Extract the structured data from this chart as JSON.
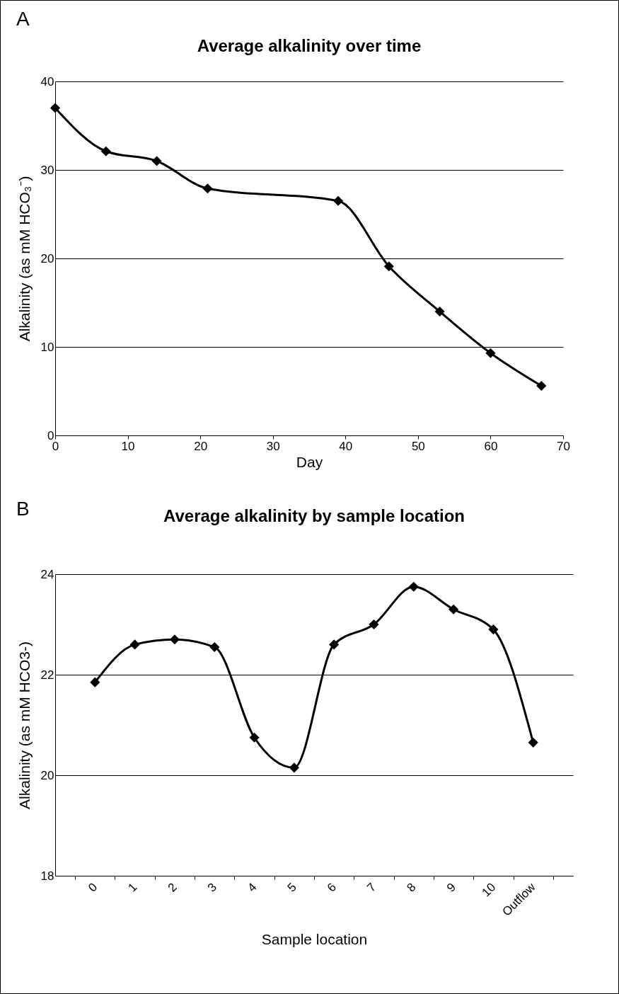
{
  "chart_data": [
    {
      "type": "line",
      "title": "Average alkalinity over time",
      "xlabel": "Day",
      "ylabel": "Alkalinity (as mM HCO₃⁻)",
      "annotations": [
        "A"
      ],
      "x": [
        0,
        7,
        14,
        21,
        39,
        46,
        53,
        60,
        67
      ],
      "series": [
        {
          "color": "#000000",
          "values": [
            37,
            32.1,
            31,
            27.9,
            26.5,
            19.1,
            14,
            9.3,
            5.6
          ]
        }
      ],
      "xlim": [
        0,
        70
      ],
      "xticks": [
        0,
        10,
        20,
        30,
        40,
        50,
        60,
        70
      ],
      "ylim": [
        0,
        40
      ],
      "yticks": [
        0,
        10,
        20,
        30,
        40
      ],
      "grid": "y",
      "marker": "diamond",
      "line_style": "solid"
    },
    {
      "type": "line",
      "title": "Average alkalinity by sample location",
      "xlabel": "Sample location",
      "ylabel": "Alkalinity (as mM HCO3-)",
      "annotations": [
        "B"
      ],
      "categories": [
        "0",
        "1",
        "2",
        "3",
        "4",
        "5",
        "6",
        "7",
        "8",
        "9",
        "10",
        "Outflow"
      ],
      "series": [
        {
          "color": "#000000",
          "values": [
            21.85,
            22.6,
            22.7,
            22.55,
            20.75,
            20.15,
            22.6,
            23.0,
            23.75,
            23.3,
            22.9,
            20.65
          ]
        }
      ],
      "ylim": [
        18,
        24
      ],
      "yticks": [
        18,
        20,
        22,
        24
      ],
      "grid": "y",
      "marker": "diamond",
      "line_style": "solid"
    }
  ]
}
